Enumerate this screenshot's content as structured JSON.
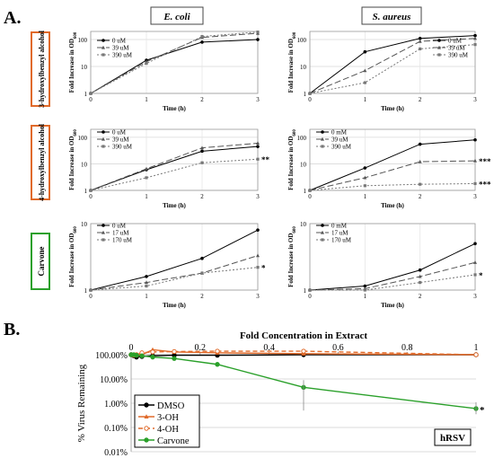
{
  "panels": {
    "a_label": "A.",
    "b_label": "B.",
    "col_titles": [
      "E. coli",
      "S. aureus"
    ],
    "row_labels": [
      {
        "text": "3-hydroxylbenzyl alcohol",
        "color": "#e06a2a"
      },
      {
        "text": "4-hydroxylbenzyl alcohol",
        "color": "#e06a2a"
      },
      {
        "text": "Carvone",
        "color": "#2aa02a"
      }
    ]
  },
  "chart_data": [
    {
      "type": "line",
      "id": "r0c0",
      "xlabel": "Time (h)",
      "ylabel": "Fold Increase in OD600",
      "x": [
        0,
        1,
        2,
        3
      ],
      "xlim": [
        0,
        3
      ],
      "ylim": [
        1,
        200
      ],
      "yscale": "log",
      "yticks": [
        1,
        10,
        100
      ],
      "legend": "top-left",
      "series": [
        {
          "name": "0 uM",
          "values": [
            1,
            17,
            80,
            100
          ]
        },
        {
          "name": "39 uM",
          "values": [
            1,
            15,
            120,
            170
          ]
        },
        {
          "name": "390 uM",
          "values": [
            1,
            13,
            130,
            190
          ]
        }
      ],
      "sig": ""
    },
    {
      "type": "line",
      "id": "r0c1",
      "xlabel": "Time (h)",
      "ylabel": "Fold Increase in OD600",
      "x": [
        0,
        1,
        2,
        3
      ],
      "xlim": [
        0,
        3
      ],
      "ylim": [
        1,
        200
      ],
      "yscale": "log",
      "yticks": [
        1,
        10,
        100
      ],
      "legend": "top-right",
      "series": [
        {
          "name": "0 uM",
          "values": [
            1,
            35,
            110,
            140
          ]
        },
        {
          "name": "39 uM",
          "values": [
            1,
            7,
            85,
            110
          ]
        },
        {
          "name": "390 uM",
          "values": [
            1,
            2.5,
            45,
            65
          ]
        }
      ],
      "sig": ""
    },
    {
      "type": "line",
      "id": "r1c0",
      "xlabel": "Time (h)",
      "ylabel": "Fold Increase in OD600",
      "x": [
        0,
        1,
        2,
        3
      ],
      "xlim": [
        0,
        3
      ],
      "ylim": [
        1,
        200
      ],
      "yscale": "log",
      "yticks": [
        1,
        10,
        100
      ],
      "legend": "top-left",
      "series": [
        {
          "name": "0 uM",
          "values": [
            1,
            6,
            30,
            45
          ]
        },
        {
          "name": "39 uM",
          "values": [
            1,
            6.5,
            40,
            60
          ]
        },
        {
          "name": "390 uM",
          "values": [
            1,
            3,
            11,
            15
          ]
        }
      ],
      "sig": "**"
    },
    {
      "type": "line",
      "id": "r1c1",
      "xlabel": "Time (h)",
      "ylabel": "Fold Increase in OD600",
      "x": [
        0,
        1,
        2,
        3
      ],
      "xlim": [
        0,
        3
      ],
      "ylim": [
        1,
        200
      ],
      "yscale": "log",
      "yticks": [
        1,
        10,
        100
      ],
      "legend": "top-left",
      "series": [
        {
          "name": "0 mM",
          "values": [
            1,
            7,
            55,
            80
          ]
        },
        {
          "name": "39 uM",
          "values": [
            1,
            3,
            12,
            13
          ]
        },
        {
          "name": "390 uM",
          "values": [
            1,
            1.5,
            1.7,
            1.8
          ]
        }
      ],
      "sig": "***"
    },
    {
      "type": "line",
      "id": "r2c0",
      "xlabel": "Time (h)",
      "ylabel": "Fold Increase in OD600",
      "x": [
        0,
        1,
        2,
        3
      ],
      "xlim": [
        0,
        3
      ],
      "ylim": [
        1,
        10
      ],
      "yscale": "log",
      "yticks": [
        1,
        10
      ],
      "legend": "top-left",
      "series": [
        {
          "name": "0 uM",
          "values": [
            1,
            1.6,
            3.0,
            8.0
          ]
        },
        {
          "name": "17 uM",
          "values": [
            1,
            1.3,
            1.8,
            3.3
          ]
        },
        {
          "name": "170 uM",
          "values": [
            1,
            1.15,
            1.8,
            2.2
          ]
        }
      ],
      "sig": "*"
    },
    {
      "type": "line",
      "id": "r2c1",
      "xlabel": "Time (h)",
      "ylabel": "Fold Increase in OD600",
      "x": [
        0,
        1,
        2,
        3
      ],
      "xlim": [
        0,
        3
      ],
      "ylim": [
        1,
        10
      ],
      "yscale": "log",
      "yticks": [
        1,
        10
      ],
      "legend": "top-left",
      "series": [
        {
          "name": "0 mM",
          "values": [
            1,
            1.15,
            2.0,
            5.0
          ]
        },
        {
          "name": "17 uM",
          "values": [
            1,
            1.05,
            1.6,
            2.6
          ]
        },
        {
          "name": "170 uM",
          "values": [
            1,
            1.0,
            1.3,
            1.7
          ]
        }
      ],
      "sig": "*"
    },
    {
      "type": "line",
      "id": "b",
      "title": "Fold Concentration in Extract",
      "ylabel": "% Virus Remaining",
      "xlim": [
        0,
        1
      ],
      "ylim": [
        0.01,
        100
      ],
      "yscale": "log",
      "xticks": [
        0,
        0.2,
        0.4,
        0.6,
        0.8,
        1
      ],
      "yticks": [
        "0.01%",
        "0.10%",
        "1.00%",
        "10.00%",
        "100.00%"
      ],
      "legend": "bottom-left",
      "annotation": "hRSV",
      "sig": "*",
      "series": [
        {
          "name": "DMSO",
          "color": "#000000",
          "x": [
            0,
            0.0078,
            0.0156,
            0.03125,
            0.0625,
            0.125,
            0.25,
            0.5,
            1
          ],
          "values": [
            100,
            90,
            80,
            85,
            90,
            95,
            95,
            100,
            100
          ]
        },
        {
          "name": "3-OH",
          "color": "#e06a2a",
          "x": [
            0,
            0.0078,
            0.0156,
            0.03125,
            0.0625,
            0.125,
            0.25,
            0.5,
            1
          ],
          "values": [
            100,
            100,
            95,
            100,
            160,
            130,
            120,
            110,
            100
          ]
        },
        {
          "name": "4-OH",
          "color": "#e06a2a",
          "x": [
            0,
            0.0078,
            0.0156,
            0.03125,
            0.0625,
            0.125,
            0.25,
            0.5,
            1
          ],
          "values": [
            100,
            95,
            100,
            120,
            130,
            135,
            140,
            140,
            100
          ]
        },
        {
          "name": "Carvone",
          "color": "#2aa02a",
          "x": [
            0,
            0.0078,
            0.0156,
            0.03125,
            0.0625,
            0.125,
            0.25,
            0.5,
            1
          ],
          "values": [
            100,
            100,
            95,
            90,
            80,
            70,
            40,
            4.5,
            0.6
          ]
        }
      ]
    }
  ]
}
